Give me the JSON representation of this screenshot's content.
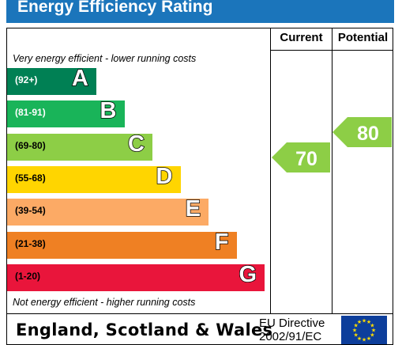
{
  "chart_data": {
    "type": "bar",
    "title": "Energy Efficiency Rating",
    "columns": [
      "Current",
      "Potential"
    ],
    "top_note": "Very energy efficient - lower running costs",
    "bottom_note": "Not energy efficient - higher running costs",
    "bands": [
      {
        "letter": "A",
        "range": "(92+)",
        "color": "#008054",
        "range_color": "#ffffff"
      },
      {
        "letter": "B",
        "range": "(81-91)",
        "color": "#19b459",
        "range_color": "#ffffff"
      },
      {
        "letter": "C",
        "range": "(69-80)",
        "color": "#8dce46",
        "range_color": "#000000"
      },
      {
        "letter": "D",
        "range": "(55-68)",
        "color": "#ffd500",
        "range_color": "#000000"
      },
      {
        "letter": "E",
        "range": "(39-54)",
        "color": "#fcaa65",
        "range_color": "#000000"
      },
      {
        "letter": "F",
        "range": "(21-38)",
        "color": "#ef8023",
        "range_color": "#000000"
      },
      {
        "letter": "G",
        "range": "(1-20)",
        "color": "#e9153b",
        "range_color": "#000000"
      }
    ],
    "current": {
      "value": 70,
      "band": "C",
      "color": "#8dce46"
    },
    "potential": {
      "value": 80,
      "band": "C",
      "color": "#8dce46"
    }
  },
  "footer": {
    "region": "England, Scotland & Wales",
    "directive_line1": "EU Directive",
    "directive_line2": "2002/91/EC"
  },
  "colors": {
    "title_bar": "#1b75bb",
    "eu_flag": "#0d3e9b",
    "eu_stars": "#ffdd00"
  }
}
